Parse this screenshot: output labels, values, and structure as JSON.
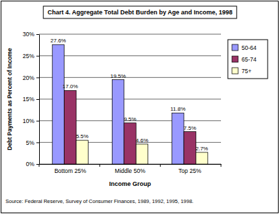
{
  "chart_data": {
    "type": "bar",
    "title": "Chart 4. Aggregate Total Debt Burden by Age and Income, 1998",
    "x_label": "Income Group",
    "y_label": "Debt Payments as Percent of Income",
    "source": "Source: Federal Reserve, Survey of Consumer Finances, 1989, 1992, 1995, 1998.",
    "categories": [
      "Bottom 25%",
      "Middle 50%",
      "Top 25%"
    ],
    "series": [
      {
        "name": "50-64",
        "color": "#9999ff",
        "values": [
          27.6,
          19.5,
          11.8
        ],
        "value_labels": [
          "27.6%",
          "19.5%",
          "11.8%"
        ]
      },
      {
        "name": "65-74",
        "color": "#993366",
        "values": [
          17.0,
          9.5,
          7.5
        ],
        "value_labels": [
          "17.0%",
          "9.5%",
          "7.5%"
        ]
      },
      {
        "name": "75+",
        "color": "#ffffcc",
        "values": [
          5.5,
          4.6,
          2.7
        ],
        "value_labels": [
          "5.5%",
          "4.6%",
          "2.7%"
        ]
      }
    ],
    "ylim": [
      0,
      30
    ],
    "yticks": [
      {
        "value": 0,
        "label": "0%"
      },
      {
        "value": 5,
        "label": "5%"
      },
      {
        "value": 10,
        "label": "10%"
      },
      {
        "value": 15,
        "label": "15%"
      },
      {
        "value": 20,
        "label": "20%"
      },
      {
        "value": 25,
        "label": "25%"
      },
      {
        "value": 30,
        "label": "30%"
      }
    ],
    "grid": true,
    "legend": "top-right",
    "data_labels": true
  }
}
